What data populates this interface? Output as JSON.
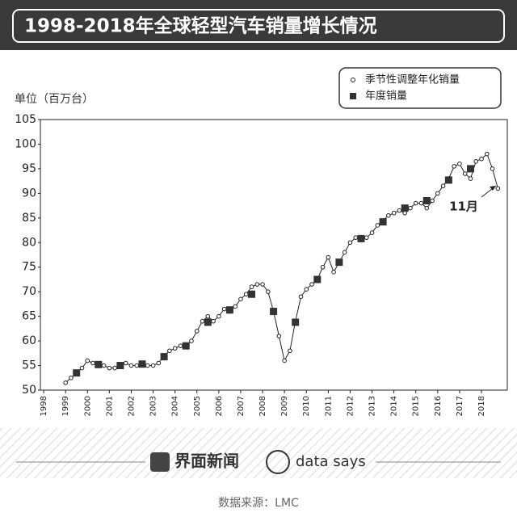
{
  "chart_data": {
    "type": "scatter",
    "title": "1998-2018年全球轻型汽车销量增长情况",
    "y_label": "单位（百万台）",
    "annotation": "11月",
    "xlim": [
      1997.85,
      2019.18
    ],
    "xticks": [
      1998,
      1999,
      2000,
      2001,
      2002,
      2003,
      2004,
      2005,
      2006,
      2007,
      2008,
      2009,
      2010,
      2011,
      2012,
      2013,
      2014,
      2015,
      2016,
      2017,
      2018
    ],
    "ylim": [
      50,
      105
    ],
    "yticks": [
      50,
      55,
      60,
      65,
      70,
      75,
      80,
      85,
      90,
      95,
      100,
      105
    ],
    "grid": false,
    "legend": "top-right",
    "series": [
      {
        "name": "季节性调整年化销量",
        "color": "#222222",
        "marker": "circle",
        "line": true,
        "x": [
          1999,
          1999.25,
          1999.5,
          1999.75,
          2000,
          2000.25,
          2000.5,
          2000.75,
          2001,
          2001.25,
          2001.5,
          2001.75,
          2002,
          2002.25,
          2002.5,
          2002.75,
          2003,
          2003.25,
          2003.5,
          2003.75,
          2004,
          2004.25,
          2004.5,
          2004.75,
          2005,
          2005.25,
          2005.5,
          2005.75,
          2006,
          2006.25,
          2006.5,
          2006.75,
          2007,
          2007.25,
          2007.5,
          2007.75,
          2008,
          2008.25,
          2008.5,
          2008.75,
          2009,
          2009.25,
          2009.5,
          2009.75,
          2010,
          2010.25,
          2010.5,
          2010.75,
          2011,
          2011.25,
          2011.5,
          2011.75,
          2012,
          2012.25,
          2012.5,
          2012.75,
          2013,
          2013.25,
          2013.5,
          2013.75,
          2014,
          2014.25,
          2014.5,
          2014.75,
          2015,
          2015.25,
          2015.5,
          2015.75,
          2016,
          2016.25,
          2016.5,
          2016.75,
          2017,
          2017.25,
          2017.5,
          2017.75,
          2018,
          2018.25,
          2018.5,
          2018.75
        ],
        "values": [
          51.5,
          52.5,
          53.5,
          54.5,
          56,
          55.5,
          55,
          55,
          54.5,
          54.5,
          55,
          55.5,
          55,
          55,
          55.5,
          55,
          55,
          55.5,
          57,
          58,
          58.5,
          59,
          59,
          60,
          62,
          64,
          65,
          64,
          65,
          66.5,
          66,
          67,
          68.5,
          69.5,
          71,
          71.5,
          71.5,
          70,
          66,
          61,
          56,
          58,
          64,
          69,
          70.5,
          71.5,
          72.5,
          75,
          77,
          74,
          76,
          78,
          80,
          81,
          80.5,
          81,
          82,
          83.5,
          84.5,
          85.5,
          86,
          86.5,
          86,
          87,
          88,
          88,
          87,
          88.5,
          90,
          91.5,
          93,
          95.5,
          96,
          94,
          93,
          96.5,
          97,
          98,
          95,
          91
        ]
      },
      {
        "name": "年度销量",
        "color": "#333333",
        "marker": "square",
        "line": false,
        "x": [
          1999.5,
          2000.5,
          2001.5,
          2002.5,
          2003.5,
          2004.5,
          2005.5,
          2006.5,
          2007.5,
          2008.5,
          2009.5,
          2010.5,
          2011.5,
          2012.5,
          2013.5,
          2014.5,
          2015.5,
          2016.5,
          2017.5
        ],
        "values": [
          53.5,
          55.2,
          55,
          55.3,
          56.8,
          59,
          63.8,
          66.3,
          69.5,
          66,
          63.8,
          72.5,
          76,
          80.8,
          84.2,
          87,
          88.5,
          92.7,
          95
        ]
      }
    ]
  },
  "footer": {
    "brand": "界面新闻",
    "brand2": "data says",
    "source": "数据来源：LMC"
  }
}
